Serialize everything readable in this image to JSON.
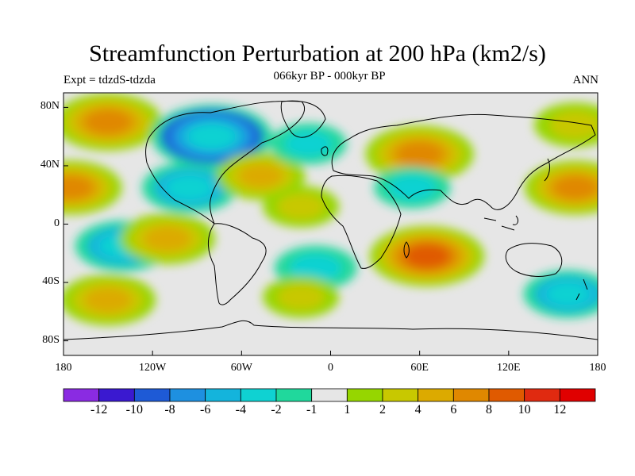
{
  "title": "Streamfunction Perturbation at 200 hPa (km2/s)",
  "subtitle_left": "Expt = tdzdS-tdzda",
  "subtitle_center": "066kyr BP - 000kyr BP",
  "subtitle_right": "ANN",
  "map": {
    "projection": "cylindrical equidistant",
    "lon_range": [
      -180,
      180
    ],
    "lat_range": [
      -90,
      90
    ],
    "x_ticks": [
      "180",
      "120W",
      "60W",
      "0",
      "60E",
      "120E",
      "180"
    ],
    "y_ticks": [
      "80N",
      "40N",
      "0",
      "40S",
      "80S"
    ]
  },
  "colorbar": {
    "colors": [
      "#8a2be2",
      "#3a19d0",
      "#1e5ad6",
      "#1e90e0",
      "#14b4dc",
      "#0fd2d2",
      "#20d89c",
      "#e6e6e6",
      "#96d600",
      "#c8c800",
      "#dcaa00",
      "#e08800",
      "#e05a00",
      "#e02a10",
      "#e00000"
    ],
    "labels": [
      "-12",
      "-10",
      "-8",
      "-6",
      "-4",
      "-2",
      "-1",
      "1",
      "2",
      "4",
      "6",
      "8",
      "10",
      "12"
    ]
  },
  "chart_data": {
    "type": "heatmap",
    "title": "Streamfunction Perturbation at 200 hPa (km2/s)",
    "units": "km2/s",
    "levels": [
      -12,
      -10,
      -8,
      -6,
      -4,
      -2,
      -1,
      1,
      2,
      4,
      6,
      8,
      10,
      12
    ],
    "features": [
      {
        "name": "high-north-pacific",
        "lon": -150,
        "lat": 70,
        "value": 7
      },
      {
        "name": "low-north-america",
        "lon": -80,
        "lat": 60,
        "value": -9
      },
      {
        "name": "low-tropical-america",
        "lon": -95,
        "lat": 25,
        "value": -5
      },
      {
        "name": "high-central-pacific-north",
        "lon": -175,
        "lat": 25,
        "value": 6
      },
      {
        "name": "high-north-atlantic",
        "lon": -47,
        "lat": 33,
        "value": 4
      },
      {
        "name": "low-north-atlantic",
        "lon": -15,
        "lat": 55,
        "value": -2
      },
      {
        "name": "high-eurasia",
        "lon": 60,
        "lat": 48,
        "value": 7
      },
      {
        "name": "low-middle-east",
        "lon": 55,
        "lat": 25,
        "value": -2
      },
      {
        "name": "high-west-pacific",
        "lon": 165,
        "lat": 25,
        "value": 6
      },
      {
        "name": "high-tropical-atlantic",
        "lon": -20,
        "lat": 12,
        "value": 2
      },
      {
        "name": "low-south-pacific",
        "lon": -140,
        "lat": -15,
        "value": -5
      },
      {
        "name": "high-south-pacific",
        "lon": -110,
        "lat": -10,
        "value": 5
      },
      {
        "name": "low-south-atlantic",
        "lon": -10,
        "lat": -30,
        "value": -3
      },
      {
        "name": "high-indian-ocean",
        "lon": 65,
        "lat": -22,
        "value": 8
      },
      {
        "name": "high-south-pacific-2",
        "lon": -150,
        "lat": -52,
        "value": 5
      },
      {
        "name": "high-southern-ocean",
        "lon": -20,
        "lat": -50,
        "value": 2
      },
      {
        "name": "low-southwest-pacific",
        "lon": 160,
        "lat": -48,
        "value": -4
      },
      {
        "name": "high-northeast-pacific",
        "lon": 165,
        "lat": 68,
        "value": 3
      }
    ]
  }
}
